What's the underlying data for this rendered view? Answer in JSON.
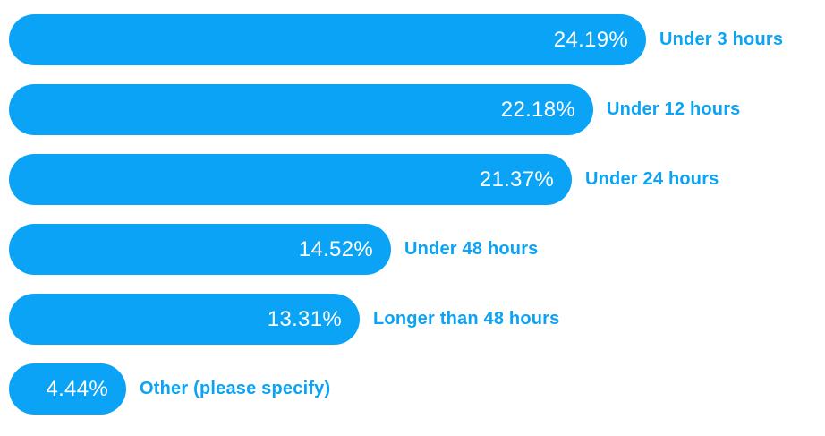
{
  "colors": {
    "accent": "#0aa3f5",
    "bar_value_text": "#ffffff",
    "background": "#ffffff"
  },
  "chart_data": {
    "type": "bar",
    "orientation": "horizontal",
    "unit": "percent",
    "title": "",
    "xlabel": "",
    "ylabel": "",
    "grid": false,
    "legend": false,
    "axis_visible": false,
    "value_label_position": "inside-end",
    "category_label_position": "right-of-bar",
    "xlim": [
      0,
      24.19
    ],
    "categories": [
      "Under 3 hours",
      "Under 12 hours",
      "Under 24 hours",
      "Under 48 hours",
      "Longer than 48 hours",
      "Other (please specify)"
    ],
    "values": [
      24.19,
      22.18,
      21.37,
      14.52,
      13.31,
      4.44
    ],
    "value_labels": [
      "24.19%",
      "22.18%",
      "21.37%",
      "14.52%",
      "13.31%",
      "4.44%"
    ]
  }
}
